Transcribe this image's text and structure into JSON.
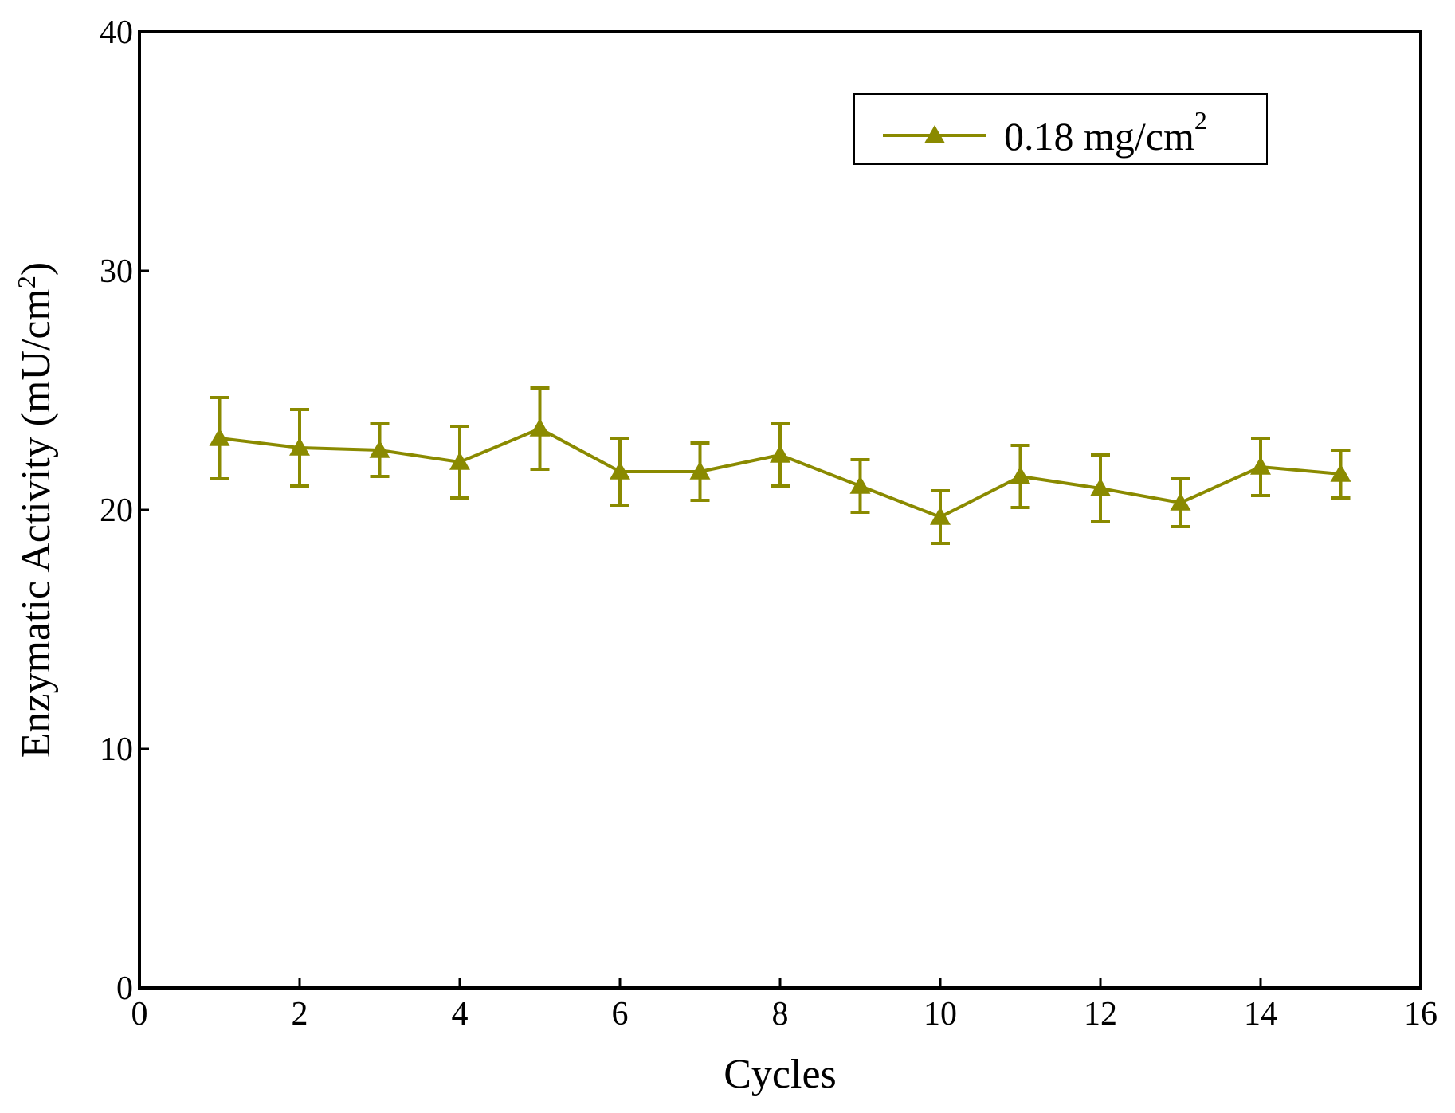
{
  "chart_data": {
    "type": "line",
    "title": "",
    "xlabel": "Cycles",
    "ylabel_main": "Enzymatic Activity (mU/cm",
    "ylabel_sup": "2",
    "ylabel_close": ")",
    "xlim": [
      0,
      16
    ],
    "ylim": [
      0,
      40
    ],
    "x_ticks": [
      0,
      2,
      4,
      6,
      8,
      10,
      12,
      14,
      16
    ],
    "y_ticks": [
      0,
      10,
      20,
      30,
      40
    ],
    "x_tick_labels": [
      "0",
      "2",
      "4",
      "6",
      "8",
      "10",
      "12",
      "14",
      "16"
    ],
    "y_tick_labels": [
      "0",
      "10",
      "20",
      "30",
      "40"
    ],
    "grid": false,
    "legend_position": "top-right",
    "series": [
      {
        "name_main": "0.18 mg/cm",
        "name_sup": "2",
        "color": "#8a8a00",
        "marker": "triangle",
        "x": [
          1,
          2,
          3,
          4,
          5,
          6,
          7,
          8,
          9,
          10,
          11,
          12,
          13,
          14,
          15
        ],
        "values": [
          23.0,
          22.6,
          22.5,
          22.0,
          23.4,
          21.6,
          21.6,
          22.3,
          21.0,
          19.7,
          21.4,
          20.9,
          20.3,
          21.8,
          21.5
        ],
        "errors": [
          1.7,
          1.6,
          1.1,
          1.5,
          1.7,
          1.4,
          1.2,
          1.3,
          1.1,
          1.1,
          1.3,
          1.4,
          1.0,
          1.2,
          1.0
        ]
      }
    ]
  }
}
